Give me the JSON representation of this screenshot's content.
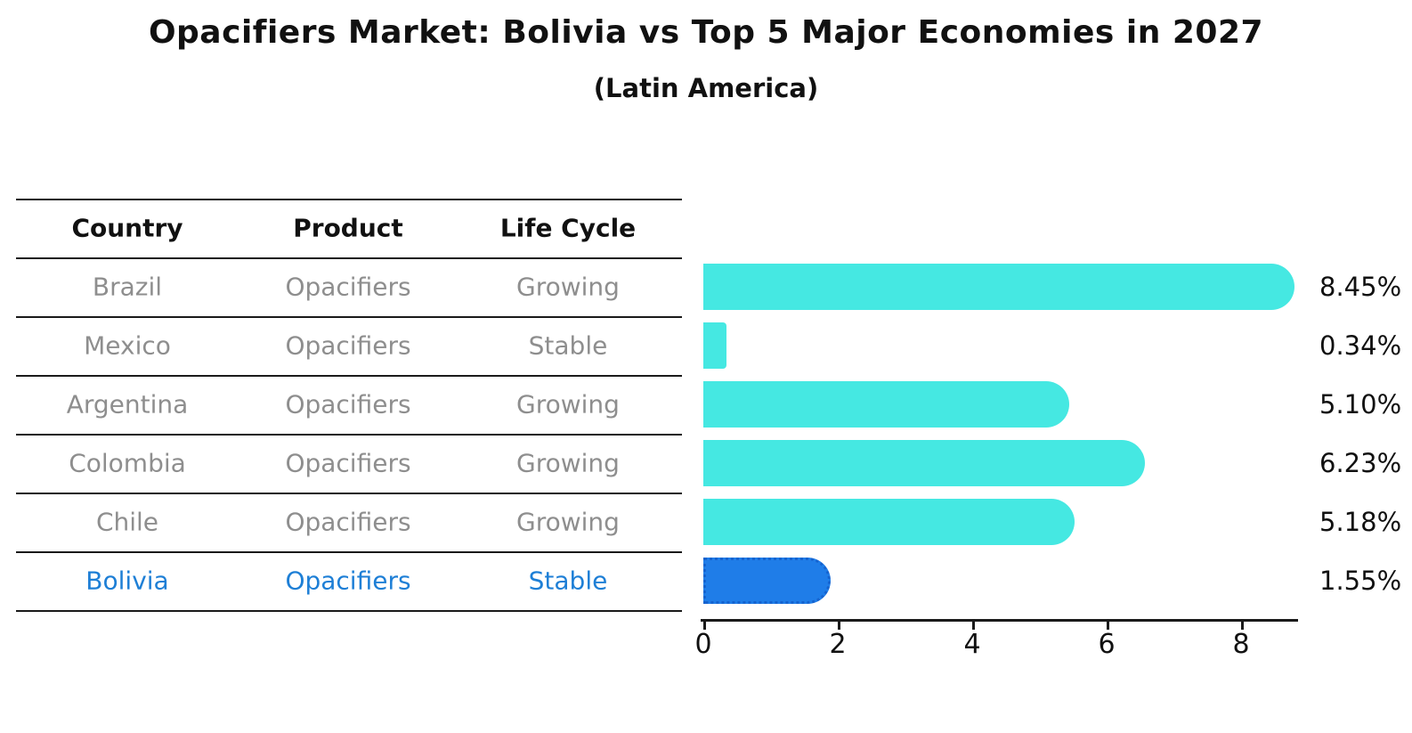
{
  "title": "Opacifiers Market: Bolivia vs Top 5 Major Economies in 2027",
  "subtitle": "(Latin America)",
  "table": {
    "headers": [
      "Country",
      "Product",
      "Life Cycle"
    ],
    "rows": [
      {
        "country": "Brazil",
        "product": "Opacifiers",
        "life_cycle": "Growing",
        "highlighted": false
      },
      {
        "country": "Mexico",
        "product": "Opacifiers",
        "life_cycle": "Stable",
        "highlighted": false
      },
      {
        "country": "Argentina",
        "product": "Opacifiers",
        "life_cycle": "Growing",
        "highlighted": false
      },
      {
        "country": "Colombia",
        "product": "Opacifiers",
        "life_cycle": "Growing",
        "highlighted": false
      },
      {
        "country": "Chile",
        "product": "Opacifiers",
        "life_cycle": "Growing",
        "highlighted": false
      },
      {
        "country": "Bolivia",
        "product": "Opacifiers",
        "life_cycle": "Stable",
        "highlighted": true
      }
    ]
  },
  "chart_data": {
    "type": "bar",
    "orientation": "horizontal",
    "title": "Opacifiers Market: Bolivia vs Top 5 Major Economies in 2027",
    "subtitle": "(Latin America)",
    "categories": [
      "Brazil",
      "Mexico",
      "Argentina",
      "Colombia",
      "Chile",
      "Bolivia"
    ],
    "values": [
      8.45,
      0.34,
      5.1,
      6.23,
      5.18,
      1.55
    ],
    "value_labels": [
      "8.45%",
      "0.34%",
      "5.10%",
      "6.23%",
      "5.18%",
      "1.55%"
    ],
    "x_ticks": [
      0,
      2,
      4,
      6,
      8
    ],
    "xlim": [
      0,
      8.8
    ],
    "highlight_index": 5,
    "grid": false,
    "legend": false,
    "xlabel": "",
    "ylabel": ""
  },
  "colors": {
    "bar": "#45e8e2",
    "highlight_bar": "#1f7de8",
    "highlight_border": "#1563cf",
    "highlight_text": "#1e7fd6",
    "row_text": "#8e8e8e",
    "header_text": "#111111",
    "line": "#1a1a1a"
  }
}
